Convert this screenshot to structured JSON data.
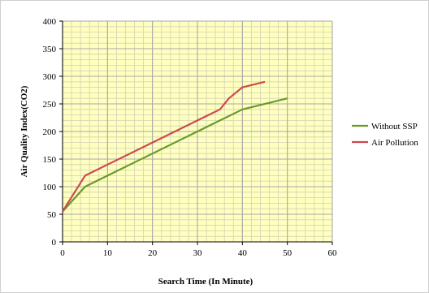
{
  "chart_data": {
    "type": "line",
    "title": "",
    "xlabel": "Search Time (In Minute)",
    "ylabel": "Air Quality Index(CO2)",
    "xlim": [
      0,
      60
    ],
    "ylim": [
      0,
      400
    ],
    "x_ticks": [
      0,
      10,
      20,
      30,
      40,
      50,
      60
    ],
    "y_ticks": [
      0,
      50,
      100,
      150,
      200,
      250,
      300,
      350,
      400
    ],
    "grid": true,
    "minor_grid": true,
    "plot_background": "#ffffc0",
    "grid_color": "#a8a8a8",
    "legend_position": "right",
    "series": [
      {
        "name": "Without SSP",
        "color": "#6a9a2a",
        "points": [
          [
            0,
            55
          ],
          [
            5,
            100
          ],
          [
            10,
            120
          ],
          [
            20,
            160
          ],
          [
            30,
            200
          ],
          [
            40,
            240
          ],
          [
            50,
            260
          ]
        ]
      },
      {
        "name": "Air Pollution",
        "color": "#cc4a50",
        "points": [
          [
            0,
            55
          ],
          [
            5,
            120
          ],
          [
            10,
            140
          ],
          [
            20,
            180
          ],
          [
            30,
            220
          ],
          [
            35,
            240
          ],
          [
            37,
            260
          ],
          [
            40,
            280
          ],
          [
            45,
            290
          ]
        ]
      }
    ]
  }
}
